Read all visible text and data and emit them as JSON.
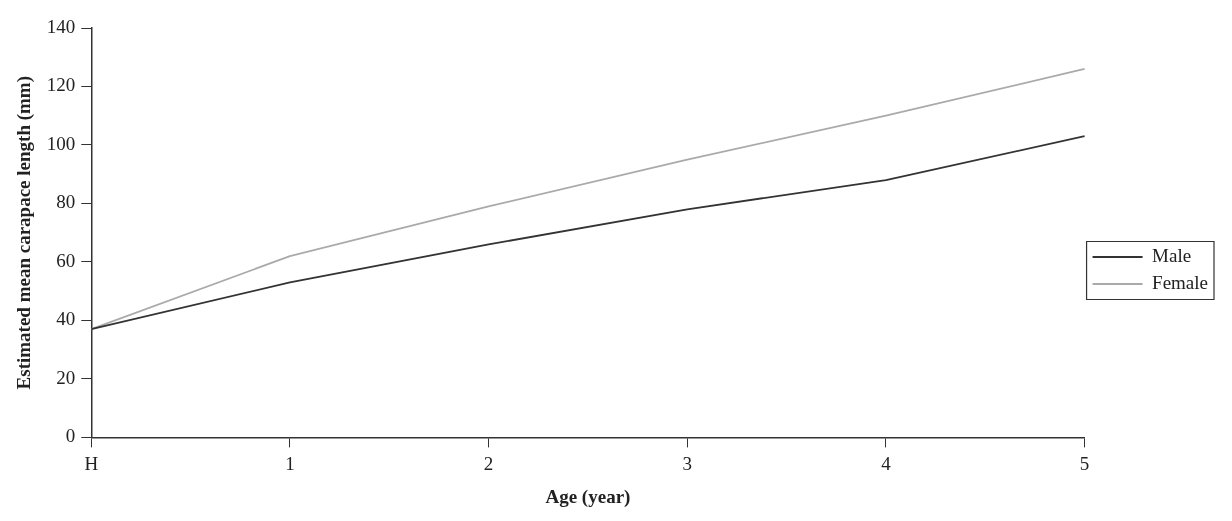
{
  "chart_data": {
    "type": "line",
    "xlabel": "Age (year)",
    "ylabel": "Estimated mean carapace length (mm)",
    "categories": [
      "H",
      "1",
      "2",
      "3",
      "4",
      "5"
    ],
    "series": [
      {
        "name": "Male",
        "color": "#333333",
        "values": [
          37,
          53,
          66,
          78,
          88,
          103
        ]
      },
      {
        "name": "Female",
        "color": "#aaaaaa",
        "values": [
          37,
          62,
          79,
          95,
          110,
          126
        ]
      }
    ],
    "ylim": [
      0,
      140
    ],
    "yticks": [
      0,
      20,
      40,
      60,
      80,
      100,
      120,
      140
    ],
    "grid": false,
    "legend": "right",
    "marker": "none",
    "line_style": "solid"
  }
}
